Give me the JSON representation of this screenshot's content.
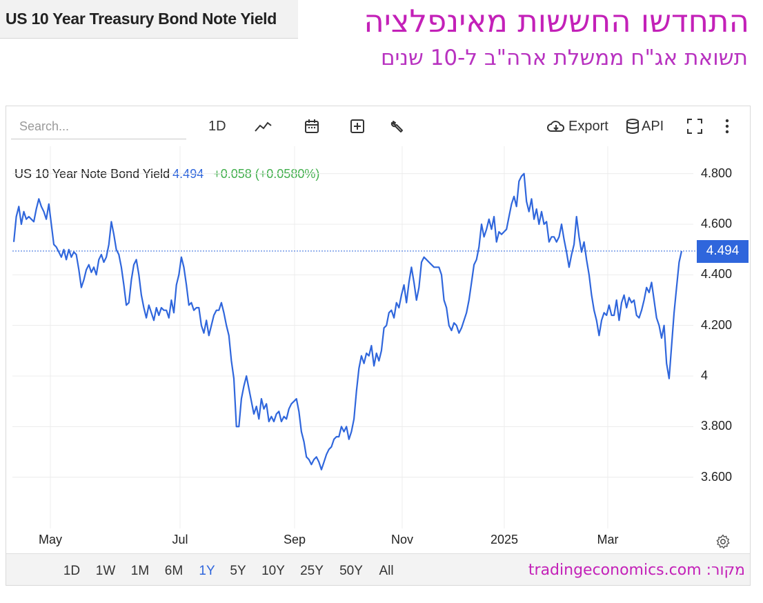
{
  "header": {
    "tab_title": "US 10 Year Treasury Bond Note Yield",
    "headline_he": "התחדשו החששות מאינפלציה",
    "subheadline_he": "תשואת אג\"ח ממשלת ארה\"ב ל-10 שנים"
  },
  "toolbar": {
    "search_placeholder": "Search...",
    "interval_label": "1D",
    "export_label": "Export",
    "api_label": "API"
  },
  "series_header": {
    "name": "US 10 Year Note Bond Yield",
    "last": "4.494",
    "change": "+0.058 (+0.0580%)"
  },
  "price_tag": "4.494",
  "range_buttons": [
    "1D",
    "1W",
    "1M",
    "6M",
    "1Y",
    "5Y",
    "10Y",
    "25Y",
    "50Y",
    "All"
  ],
  "active_range": "1Y",
  "source_text": "מקור: tradingeconomics.com",
  "colors": {
    "line": "#2f66dc",
    "accent": "#c321b8",
    "positive": "#3fae4a"
  },
  "chart_data": {
    "type": "line",
    "title": "US 10 Year Note Bond Yield",
    "xlabel": "",
    "ylabel": "",
    "ylim": [
      3.4,
      4.9
    ],
    "y_ticks": [
      "4.800",
      "4.600",
      "4.400",
      "4.200",
      "4",
      "3.800",
      "3.600"
    ],
    "x_ticks": [
      "May",
      "Jul",
      "Sep",
      "Nov",
      "2025",
      "Mar"
    ],
    "grid": true,
    "last_value": 4.494,
    "series": [
      {
        "values": [
          4.53,
          4.63,
          4.67,
          4.6,
          4.65,
          4.62,
          4.63,
          4.62,
          4.61,
          4.66,
          4.7,
          4.67,
          4.65,
          4.62,
          4.68,
          4.6,
          4.52,
          4.51,
          4.49,
          4.47,
          4.5,
          4.46,
          4.5,
          4.47,
          4.49,
          4.48,
          4.42,
          4.35,
          4.38,
          4.42,
          4.44,
          4.41,
          4.43,
          4.4,
          4.46,
          4.48,
          4.45,
          4.47,
          4.52,
          4.61,
          4.56,
          4.5,
          4.48,
          4.43,
          4.36,
          4.28,
          4.29,
          4.38,
          4.44,
          4.46,
          4.4,
          4.32,
          4.27,
          4.23,
          4.28,
          4.25,
          4.22,
          4.27,
          4.24,
          4.27,
          4.26,
          4.26,
          4.23,
          4.3,
          4.25,
          4.36,
          4.4,
          4.47,
          4.43,
          4.36,
          4.28,
          4.29,
          4.26,
          4.27,
          4.27,
          4.2,
          4.17,
          4.22,
          4.16,
          4.2,
          4.24,
          4.26,
          4.26,
          4.29,
          4.25,
          4.2,
          4.16,
          4.06,
          3.99,
          3.8,
          3.8,
          3.91,
          3.96,
          4.0,
          3.95,
          3.9,
          3.85,
          3.88,
          3.83,
          3.91,
          3.87,
          3.89,
          3.82,
          3.84,
          3.82,
          3.85,
          3.86,
          3.82,
          3.84,
          3.83,
          3.87,
          3.89,
          3.9,
          3.91,
          3.86,
          3.78,
          3.74,
          3.68,
          3.67,
          3.65,
          3.67,
          3.68,
          3.66,
          3.63,
          3.66,
          3.69,
          3.71,
          3.72,
          3.75,
          3.76,
          3.76,
          3.8,
          3.78,
          3.8,
          3.75,
          3.78,
          3.83,
          3.94,
          4.03,
          4.08,
          4.05,
          4.09,
          4.08,
          4.12,
          4.04,
          4.09,
          4.06,
          4.1,
          4.19,
          4.2,
          4.25,
          4.26,
          4.23,
          4.29,
          4.27,
          4.32,
          4.36,
          4.29,
          4.37,
          4.43,
          4.37,
          4.3,
          4.35,
          4.45,
          4.47,
          4.46,
          4.45,
          4.44,
          4.43,
          4.43,
          4.43,
          4.4,
          4.3,
          4.27,
          4.2,
          4.18,
          4.21,
          4.2,
          4.17,
          4.19,
          4.22,
          4.25,
          4.3,
          4.37,
          4.44,
          4.46,
          4.51,
          4.6,
          4.55,
          4.58,
          4.62,
          4.58,
          4.63,
          4.53,
          4.57,
          4.56,
          4.57,
          4.58,
          4.63,
          4.68,
          4.71,
          4.67,
          4.77,
          4.79,
          4.8,
          4.69,
          4.65,
          4.7,
          4.62,
          4.66,
          4.6,
          4.65,
          4.6,
          4.61,
          4.53,
          4.55,
          4.55,
          4.53,
          4.55,
          4.6,
          4.54,
          4.49,
          4.43,
          4.48,
          4.52,
          4.63,
          4.55,
          4.49,
          4.53,
          4.46,
          4.4,
          4.32,
          4.26,
          4.22,
          4.16,
          4.22,
          4.25,
          4.24,
          4.28,
          4.24,
          4.24,
          4.3,
          4.22,
          4.29,
          4.32,
          4.27,
          4.31,
          4.29,
          4.3,
          4.24,
          4.23,
          4.26,
          4.3,
          4.35,
          4.33,
          4.37,
          4.3,
          4.23,
          4.2,
          4.15,
          4.2,
          4.05,
          3.99,
          4.12,
          4.25,
          4.35,
          4.45,
          4.494
        ]
      }
    ]
  }
}
